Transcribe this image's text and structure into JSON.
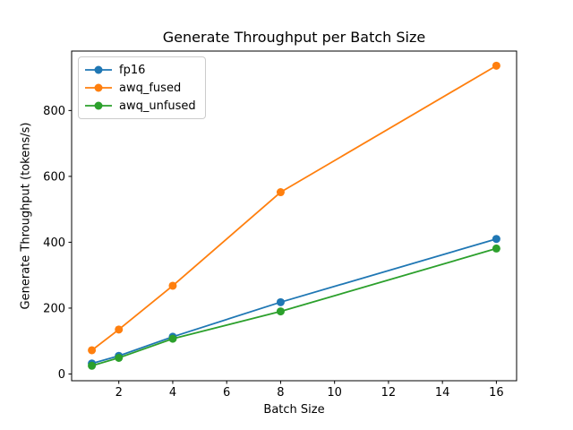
{
  "chart_data": {
    "type": "line",
    "title": "Generate Throughput per Batch Size",
    "xlabel": "Batch Size",
    "ylabel": "Generate Throughput (tokens/s)",
    "x": [
      1,
      2,
      4,
      8,
      16
    ],
    "series": [
      {
        "name": "fp16",
        "color": "#1f77b4",
        "values": [
          32,
          55,
          113,
          218,
          410
        ]
      },
      {
        "name": "awq_fused",
        "color": "#ff7f0e",
        "values": [
          72,
          135,
          268,
          552,
          936
        ]
      },
      {
        "name": "awq_unfused",
        "color": "#2ca02c",
        "values": [
          25,
          49,
          107,
          190,
          381
        ]
      }
    ],
    "xticks": [
      2,
      4,
      6,
      8,
      10,
      12,
      14,
      16
    ],
    "yticks": [
      0,
      200,
      400,
      600,
      800
    ],
    "xlim": [
      0.25,
      16.75
    ],
    "ylim": [
      -20.5,
      980.5
    ],
    "grid": false,
    "legend_position": "upper left",
    "marker": "o",
    "frame_color": "#000000"
  }
}
